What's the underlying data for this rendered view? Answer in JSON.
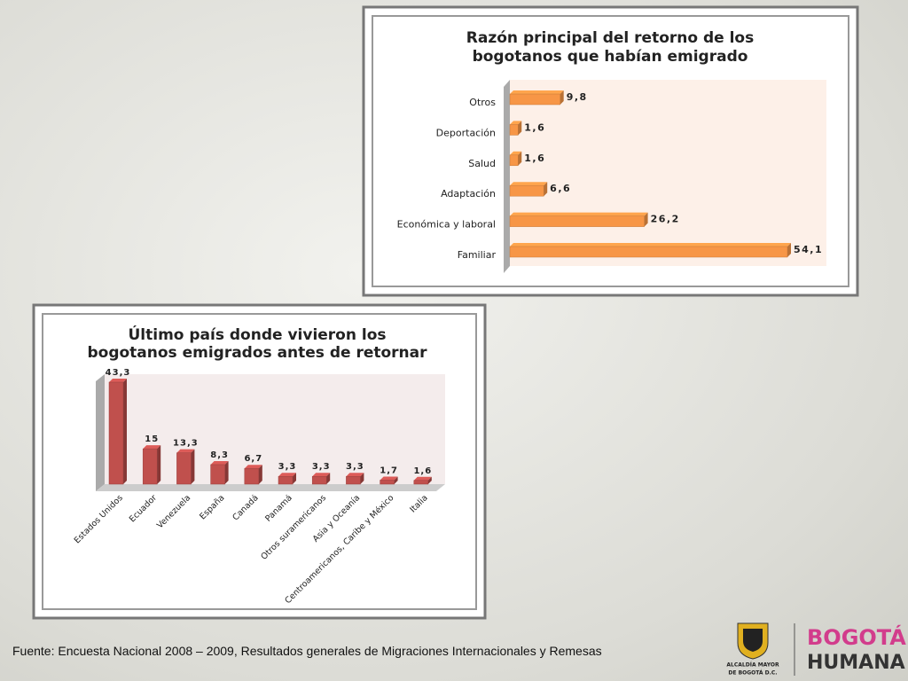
{
  "chart_data": [
    {
      "type": "hbar",
      "title": [
        "Razón principal del retorno de los",
        "bogotanos que habían emigrado"
      ],
      "categories": [
        "Otros",
        "Deportación",
        "Salud",
        "Adaptación",
        "Económica y laboral",
        "Familiar"
      ],
      "values": [
        9.8,
        1.6,
        1.6,
        6.6,
        26.2,
        54.1
      ],
      "value_labels": [
        "9,8",
        "1,6",
        "1,6",
        "6,6",
        "26,2",
        "54,1"
      ],
      "color": "#f79646"
    },
    {
      "type": "bar",
      "title": [
        "Último país donde vivieron los",
        "bogotanos emigrados antes de retornar"
      ],
      "categories": [
        "Estados Unidos",
        "Ecuador",
        "Venezuela",
        "España",
        "Canadá",
        "Panamá",
        "Otros suramericanos",
        "Asia y Oceanía",
        "Centroamericanos, Caribe y México",
        "Italia"
      ],
      "values": [
        43.3,
        15,
        13.3,
        8.3,
        6.7,
        3.3,
        3.3,
        3.3,
        1.7,
        1.6
      ],
      "value_labels": [
        "43,3",
        "15",
        "13,3",
        "8,3",
        "6,7",
        "3,3",
        "3,3",
        "3,3",
        "1,7",
        "1,6"
      ],
      "color": "#c0504d"
    }
  ],
  "source": "Fuente: Encuesta Nacional 2008 – 2009, Resultados generales de Migraciones Internacionales y Remesas",
  "logos": {
    "alcaldia": [
      "ALCALDÍA MAYOR",
      "DE BOGOTÁ D.C."
    ],
    "bogota": "BOGOTÁ",
    "humana": "HUMANA"
  }
}
